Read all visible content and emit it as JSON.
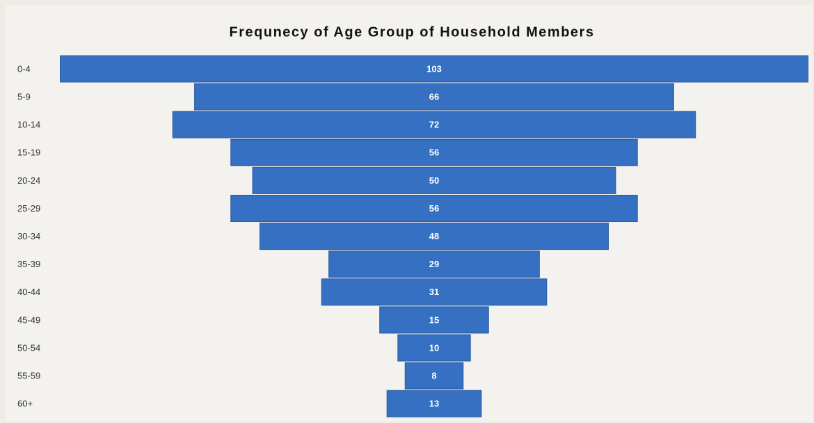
{
  "chart_data": {
    "type": "funnel",
    "title": "Frequnecy of Age Group of Household Members",
    "categories": [
      "0-4",
      "5-9",
      "10-14",
      "15-19",
      "20-24",
      "25-29",
      "30-34",
      "35-39",
      "40-44",
      "45-49",
      "50-54",
      "55-59",
      "60+"
    ],
    "values": [
      103,
      66,
      72,
      56,
      50,
      56,
      48,
      29,
      31,
      15,
      10,
      8,
      13
    ],
    "color": "#3570c2"
  }
}
